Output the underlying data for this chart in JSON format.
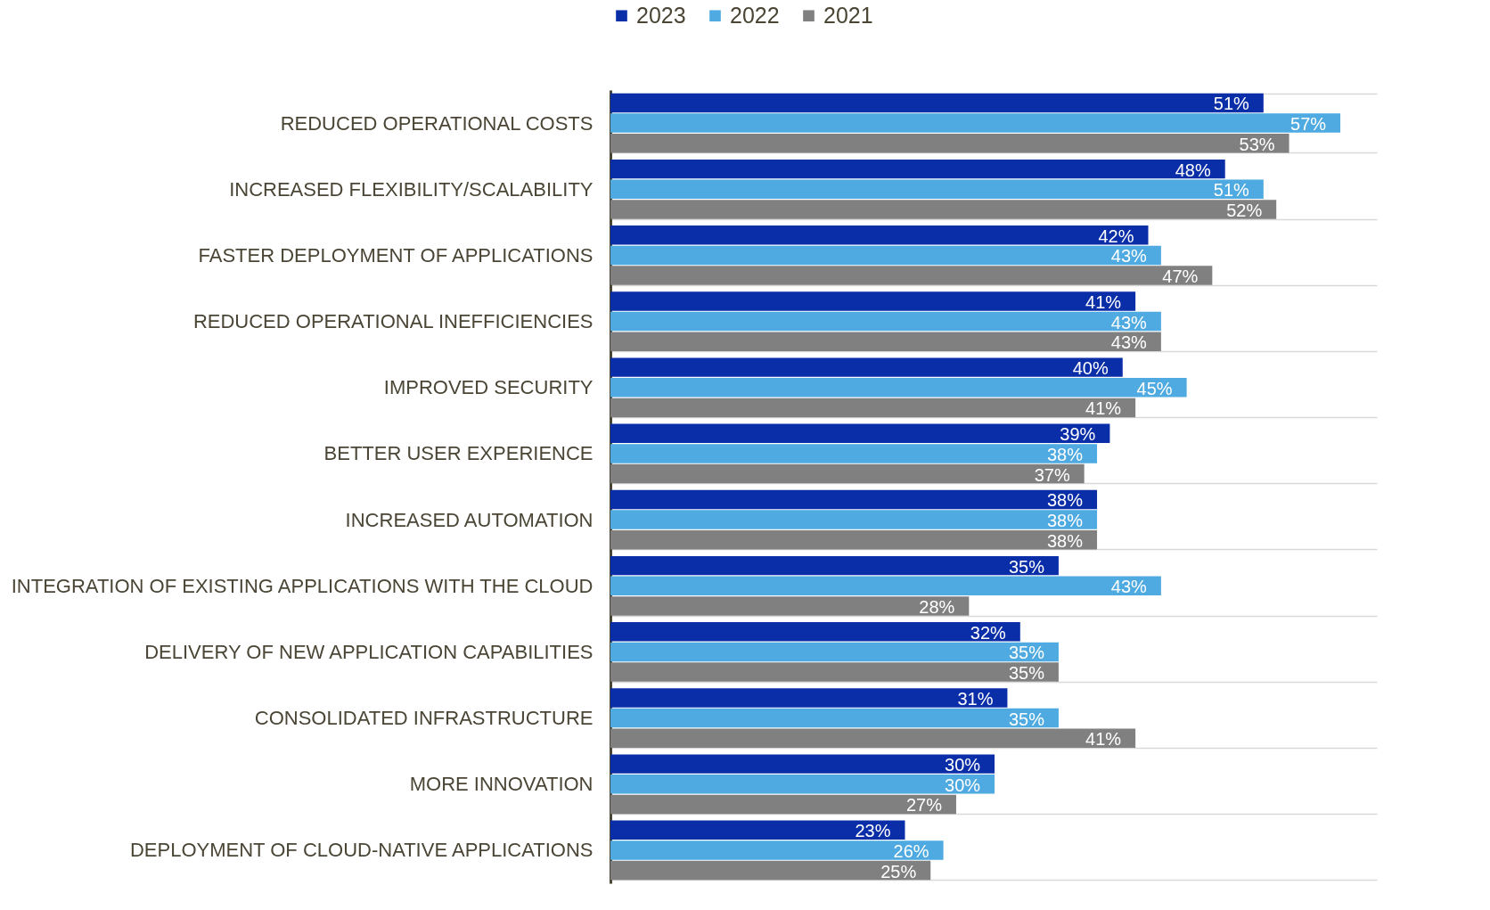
{
  "chart_data": {
    "type": "bar",
    "orientation": "horizontal",
    "grid": "y",
    "legend": "top",
    "categories": [
      "REDUCED OPERATIONAL COSTS",
      "INCREASED FLEXIBILITY/SCALABILITY",
      "FASTER DEPLOYMENT OF APPLICATIONS",
      "REDUCED OPERATIONAL INEFFICIENCIES",
      "IMPROVED SECURITY",
      "BETTER USER EXPERIENCE",
      "INCREASED AUTOMATION",
      "INTEGRATION OF EXISTING APPLICATIONS WITH THE CLOUD",
      "DELIVERY OF NEW APPLICATION CAPABILITIES",
      "CONSOLIDATED INFRASTRUCTURE",
      "MORE INNOVATION",
      "DEPLOYMENT OF CLOUD-NATIVE APPLICATIONS"
    ],
    "series": [
      {
        "name": "2023",
        "color": "#0a2ea8",
        "values": [
          51,
          48,
          42,
          41,
          40,
          39,
          38,
          35,
          32,
          31,
          30,
          23
        ],
        "value_labels": [
          "51%",
          "48%",
          "42%",
          "41%",
          "40%",
          "39%",
          "38%",
          "35%",
          "32%",
          "31%",
          "30%",
          "23%"
        ]
      },
      {
        "name": "2022",
        "color": "#4eaae0",
        "values": [
          57,
          51,
          43,
          43,
          45,
          38,
          38,
          43,
          35,
          35,
          30,
          26
        ],
        "value_labels": [
          "57%",
          "51%",
          "43%",
          "43%",
          "45%",
          "38%",
          "38%",
          "43%",
          "35%",
          "35%",
          "30%",
          "26%"
        ]
      },
      {
        "name": "2021",
        "color": "#808080",
        "values": [
          53,
          52,
          47,
          43,
          41,
          37,
          38,
          28,
          35,
          41,
          27,
          25
        ],
        "value_labels": [
          "53%",
          "52%",
          "47%",
          "43%",
          "41%",
          "37%",
          "38%",
          "28%",
          "35%",
          "41%",
          "27%",
          "25%"
        ]
      }
    ]
  }
}
